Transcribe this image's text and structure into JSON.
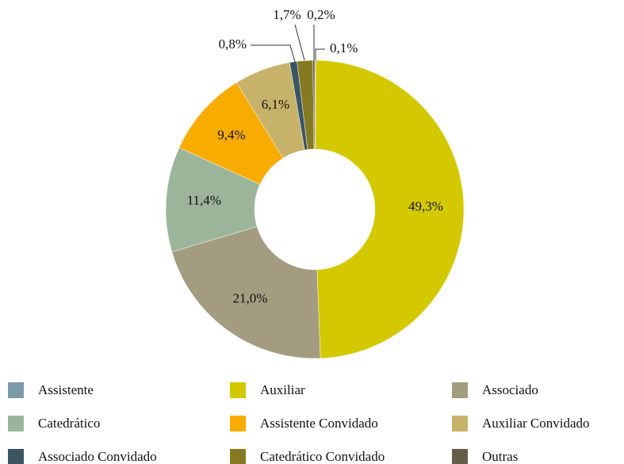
{
  "chart_data": {
    "type": "pie",
    "donut": true,
    "categories": [
      "Assistente",
      "Auxiliar",
      "Associado",
      "Catedrático",
      "Assistente Convidado",
      "Auxiliar Convidado",
      "Associado Convidado",
      "Catedrático Convidado",
      "Outras"
    ],
    "values": [
      0.1,
      49.3,
      21.0,
      11.4,
      9.4,
      6.1,
      0.8,
      1.7,
      0.2
    ],
    "value_labels": [
      "0,1%",
      "49,3%",
      "21,0%",
      "11,4%",
      "9,4%",
      "6,1%",
      "0,8%",
      "1,7%",
      "0,2%"
    ],
    "colors": [
      "#7a9aa6",
      "#d4c800",
      "#a39c80",
      "#9cb59a",
      "#f8ac00",
      "#c7b26a",
      "#3b5662",
      "#857a22",
      "#655c4a"
    ],
    "legend": "bottom"
  }
}
